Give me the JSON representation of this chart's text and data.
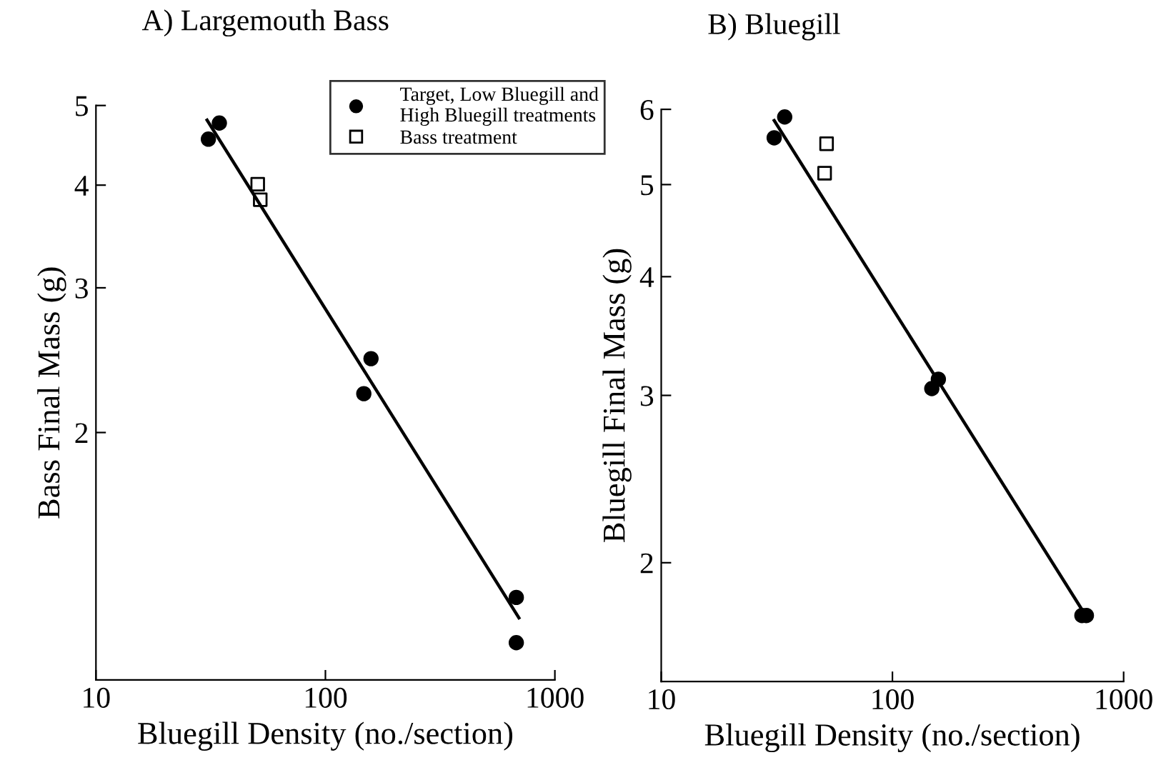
{
  "chart_data": [
    {
      "type": "scatter",
      "title": "A) Largemouth Bass",
      "xlabel": "Bluegill Density (no./section)",
      "ylabel": "Bass Final Mass (g)",
      "log": "xy",
      "xlim": [
        10,
        1000
      ],
      "xticks": [
        10,
        100,
        1000
      ],
      "ylim": [
        1,
        5
      ],
      "yticks": [
        2,
        3,
        4,
        5
      ],
      "grid": false,
      "legend": "top right",
      "series": [
        {
          "name": "Target, Low Bluegill and\nHigh Bluegill treatments",
          "color": "#000000",
          "marker": "circle",
          "x": [
            30.9,
            34.5,
            147,
            158,
            679,
            679
          ],
          "values": [
            4.55,
            4.76,
            2.23,
            2.46,
            1.26,
            1.11
          ]
        },
        {
          "name": "Bass treatment",
          "color": "#000000",
          "marker": "square",
          "x": [
            50.7,
            52
          ],
          "values": [
            4.01,
            3.84
          ]
        },
        {
          "type": "line",
          "color": "#000000",
          "marker": "none",
          "line_style": "solid",
          "x": [
            30.5,
            697
          ],
          "values": [
            4.8,
            1.19
          ]
        }
      ]
    },
    {
      "type": "scatter",
      "title": "B) Bluegill",
      "xlabel": "Bluegill Density (no./section)",
      "ylabel": "Bluegill Final Mass (g)",
      "log": "xy",
      "xlim": [
        10,
        1000
      ],
      "xticks": [
        10,
        100,
        1000
      ],
      "ylim": [
        1.5,
        6
      ],
      "yticks": [
        2,
        3,
        4,
        5,
        6
      ],
      "grid": false,
      "series": [
        {
          "color": "#000000",
          "marker": "circle",
          "x": [
            30.8,
            34.2,
            148,
            158,
            660,
            690
          ],
          "values": [
            5.6,
            5.89,
            3.05,
            3.12,
            1.76,
            1.76
          ]
        },
        {
          "color": "#000000",
          "marker": "square",
          "x": [
            51.9,
            50.9
          ],
          "values": [
            5.52,
            5.14
          ]
        },
        {
          "type": "line",
          "color": "#000000",
          "marker": "none",
          "line_style": "solid",
          "x": [
            30.8,
            675
          ],
          "values": [
            5.84,
            1.77
          ]
        }
      ]
    }
  ]
}
